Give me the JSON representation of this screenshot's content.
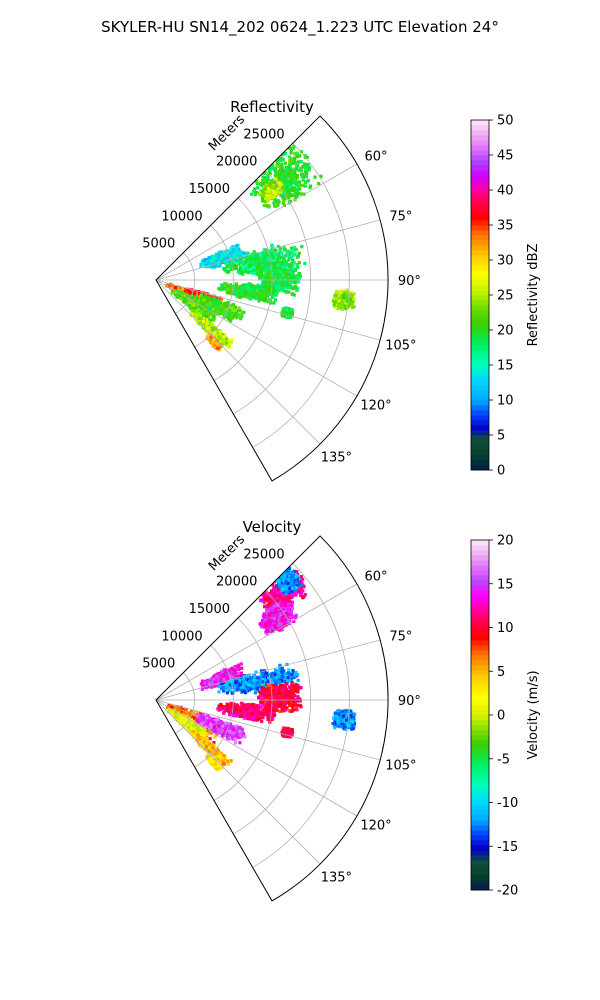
{
  "figure": {
    "suptitle": "SKYLER-HU  SN14_202  0624_1.223 UTC Elevation 24°"
  },
  "chart_data": [
    {
      "type": "heatmap",
      "subtype": "polar-sector",
      "title": "Reflectivity",
      "radial_label": "Meters",
      "r_ticks": [
        5000,
        10000,
        15000,
        20000,
        25000
      ],
      "r_max": 30000,
      "theta_range_deg": [
        45,
        150
      ],
      "theta_ticks": [
        60,
        75,
        90,
        105,
        120,
        135
      ],
      "theta_tick_labels": [
        "60°",
        "75°",
        "90°",
        "105°",
        "120°",
        "135°"
      ],
      "grid": true,
      "colorbar": {
        "label": "Reflectivity dBZ",
        "vmin": 0,
        "vmax": 50,
        "ticks": [
          0,
          5,
          10,
          15,
          20,
          25,
          30,
          35,
          40,
          45,
          50
        ]
      },
      "echoes": [
        {
          "theta": 52,
          "r": 21000,
          "dr": 4500,
          "dtheta": 9,
          "value": 20
        },
        {
          "theta": 52,
          "r": 19000,
          "dr": 1500,
          "dtheta": 3,
          "value": 25
        },
        {
          "theta": 72,
          "r": 9000,
          "dr": 3000,
          "dtheta": 6,
          "value": 13
        },
        {
          "theta": 80,
          "r": 14000,
          "dr": 5500,
          "dtheta": 7,
          "value": 18
        },
        {
          "theta": 89,
          "r": 16000,
          "dr": 3000,
          "dtheta": 8,
          "value": 19
        },
        {
          "theta": 97,
          "r": 12000,
          "dr": 4000,
          "dtheta": 5,
          "value": 20
        },
        {
          "theta": 115,
          "r": 5000,
          "dr": 3500,
          "dtheta": 9,
          "value": 33
        },
        {
          "theta": 110,
          "r": 6500,
          "dr": 2500,
          "dtheta": 5,
          "value": 36
        },
        {
          "theta": 122,
          "r": 6000,
          "dr": 3500,
          "dtheta": 8,
          "value": 22
        },
        {
          "theta": 113,
          "r": 9000,
          "dr": 3500,
          "dtheta": 6,
          "value": 21
        },
        {
          "theta": 132,
          "r": 9500,
          "dr": 3500,
          "dtheta": 4,
          "value": 25
        },
        {
          "theta": 137,
          "r": 11000,
          "dr": 1200,
          "dtheta": 2,
          "value": 32
        },
        {
          "theta": 96,
          "r": 24500,
          "dr": 1500,
          "dtheta": 3,
          "value": 24
        },
        {
          "theta": 104,
          "r": 17500,
          "dr": 700,
          "dtheta": 2,
          "value": 19
        }
      ]
    },
    {
      "type": "heatmap",
      "subtype": "polar-sector",
      "title": "Velocity",
      "radial_label": "Meters",
      "r_ticks": [
        5000,
        10000,
        15000,
        20000,
        25000
      ],
      "r_max": 30000,
      "theta_range_deg": [
        45,
        150
      ],
      "theta_ticks": [
        60,
        75,
        90,
        105,
        120,
        135
      ],
      "theta_tick_labels": [
        "60°",
        "75°",
        "90°",
        "105°",
        "120°",
        "135°"
      ],
      "grid": true,
      "colorbar": {
        "label": "Velocity (m/s)",
        "vmin": -20,
        "vmax": 20,
        "ticks": [
          -20,
          -15,
          -10,
          -5,
          0,
          5,
          10,
          15,
          20
        ]
      },
      "echoes": [
        {
          "theta": 50,
          "r": 21500,
          "dr": 3500,
          "dtheta": 6,
          "value": 12
        },
        {
          "theta": 56,
          "r": 19000,
          "dr": 2500,
          "dtheta": 5,
          "value": 14
        },
        {
          "theta": 48,
          "r": 23000,
          "dr": 1500,
          "dtheta": 4,
          "value": -12
        },
        {
          "theta": 72,
          "r": 9000,
          "dr": 3000,
          "dtheta": 6,
          "value": 14
        },
        {
          "theta": 80,
          "r": 13500,
          "dr": 5500,
          "dtheta": 6,
          "value": -12
        },
        {
          "theta": 89,
          "r": 16000,
          "dr": 3000,
          "dtheta": 7,
          "value": 10
        },
        {
          "theta": 97,
          "r": 12000,
          "dr": 4000,
          "dtheta": 5,
          "value": 11
        },
        {
          "theta": 117,
          "r": 5500,
          "dr": 4000,
          "dtheta": 11,
          "value": 7
        },
        {
          "theta": 127,
          "r": 5000,
          "dr": 3000,
          "dtheta": 8,
          "value": 1
        },
        {
          "theta": 113,
          "r": 9000,
          "dr": 3500,
          "dtheta": 6,
          "value": 15
        },
        {
          "theta": 132,
          "r": 9500,
          "dr": 3500,
          "dtheta": 4,
          "value": 5
        },
        {
          "theta": 137,
          "r": 11000,
          "dr": 1200,
          "dtheta": 2,
          "value": 3
        },
        {
          "theta": 96,
          "r": 24500,
          "dr": 1500,
          "dtheta": 3,
          "value": -12
        },
        {
          "theta": 104,
          "r": 17500,
          "dr": 700,
          "dtheta": 2,
          "value": 10
        }
      ]
    }
  ]
}
